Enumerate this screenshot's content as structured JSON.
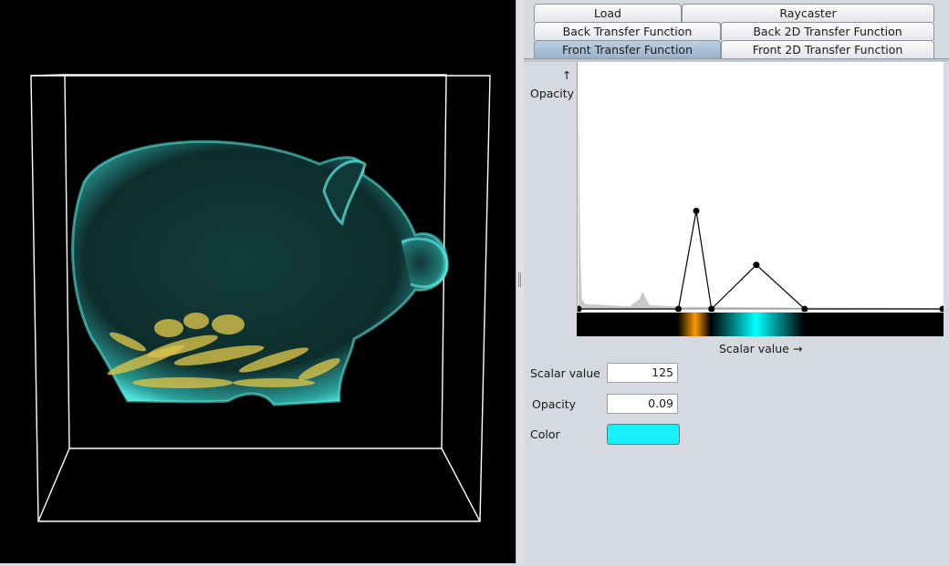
{
  "tabs": {
    "row1": [
      "Load",
      "Raycaster"
    ],
    "row2": [
      "Back Transfer Function",
      "Back 2D Transfer Function"
    ],
    "row3": [
      "Front Transfer Function",
      "Front 2D Transfer Function"
    ],
    "selected": "Front Transfer Function"
  },
  "transfer_function": {
    "y_axis_arrow": "↑",
    "y_axis_label": "Opacity",
    "x_axis_label": "Scalar value →",
    "colors": {
      "orange": "#ff9900",
      "cyan": "#00ffff",
      "line": "#000000",
      "histogram": "#c8c8c8"
    }
  },
  "chart_data": {
    "type": "line",
    "xlabel": "Scalar value →",
    "ylabel": "Opacity",
    "xlim": [
      0,
      430
    ],
    "ylim": [
      0,
      0.5
    ],
    "control_points": [
      {
        "x": 0,
        "y": 0.0
      },
      {
        "x": 118,
        "y": 0.0
      },
      {
        "x": 139,
        "y": 0.2
      },
      {
        "x": 157,
        "y": 0.0
      },
      {
        "x": 210,
        "y": 0.09
      },
      {
        "x": 267,
        "y": 0.0
      },
      {
        "x": 430,
        "y": 0.0
      }
    ],
    "histogram": [
      {
        "x": 0,
        "y": 0.45
      },
      {
        "x": 2,
        "y": 0.12
      },
      {
        "x": 4,
        "y": 0.02
      },
      {
        "x": 8,
        "y": 0.01
      },
      {
        "x": 60,
        "y": 0.005
      },
      {
        "x": 72,
        "y": 0.02
      },
      {
        "x": 76,
        "y": 0.035
      },
      {
        "x": 80,
        "y": 0.02
      },
      {
        "x": 84,
        "y": 0.008
      },
      {
        "x": 120,
        "y": 0.004
      },
      {
        "x": 160,
        "y": 0.004
      },
      {
        "x": 240,
        "y": 0.003
      },
      {
        "x": 430,
        "y": 0.002
      }
    ],
    "color_stops": [
      {
        "x": 118,
        "color": "#ff9900"
      },
      {
        "x": 157,
        "color": "#000000"
      },
      {
        "x": 210,
        "color": "#00ffff"
      },
      {
        "x": 267,
        "color": "#000000"
      }
    ],
    "selected_point_index": 4
  },
  "properties": {
    "scalar_value_label": "Scalar value",
    "scalar_value": "125",
    "opacity_label": "Opacity",
    "opacity": "0.09",
    "color_label": "Color",
    "color": "#18f0fc"
  },
  "render_view": {
    "background": "#000000",
    "box_color": "#ffffff",
    "body_color": "#3fd6cf",
    "coins_color": "#d8c24a"
  }
}
